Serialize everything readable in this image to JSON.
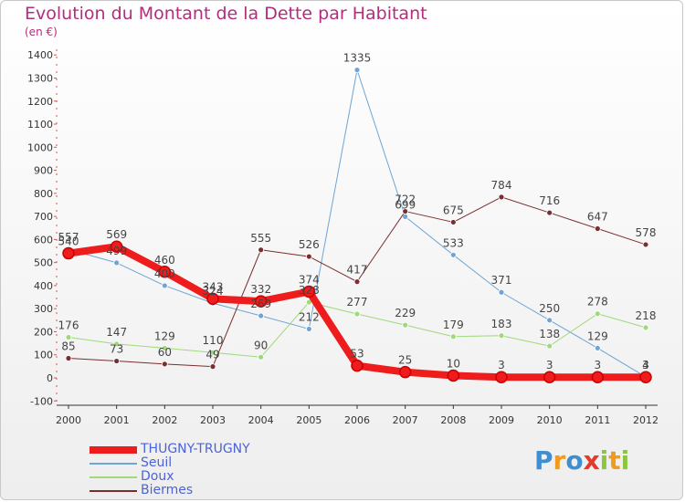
{
  "title": "Evolution du Montant de la Dette par Habitant",
  "subtitle": "(en €)",
  "logo": {
    "text": "Proxiti",
    "colors": [
      "#3e8ed0",
      "#f29a1b",
      "#3e8ed0",
      "#e23b2e",
      "#8cc63f",
      "#f29a1b",
      "#8cc63f"
    ]
  },
  "chart_data": {
    "type": "line",
    "x": [
      "2000",
      "2001",
      "2002",
      "2003",
      "2004",
      "2005",
      "2006",
      "2007",
      "2008",
      "2009",
      "2010",
      "2011",
      "2012"
    ],
    "ylim": [
      -100,
      1400
    ],
    "yticks": [
      "-100",
      "0",
      "100",
      "200",
      "300",
      "400",
      "500",
      "600",
      "700",
      "800",
      "900",
      "1000",
      "1100",
      "1200",
      "1300",
      "1400"
    ],
    "grid": false,
    "legend": "bottom-left",
    "series": [
      {
        "name": "THUGNY-TRUGNY",
        "color": "#ee1c1c",
        "width": 8,
        "marker": 6,
        "values": [
          540,
          569,
          460,
          343,
          332,
          374,
          53,
          25,
          10,
          3,
          3,
          3,
          3
        ],
        "labels": [
          "540",
          "569",
          "460",
          "343",
          "332",
          "374",
          "53",
          "25",
          "10",
          "3",
          "3",
          "3",
          "3"
        ]
      },
      {
        "name": "Seuil",
        "color": "#6fa4d4",
        "width": 1,
        "marker": 3,
        "values": [
          557,
          499,
          400,
          324,
          269,
          212,
          1335,
          699,
          533,
          371,
          250,
          129,
          4
        ],
        "labels": [
          "557",
          "499",
          "400",
          "324",
          "269",
          "212",
          "1335",
          "699",
          "533",
          "371",
          "250",
          "129",
          "4"
        ]
      },
      {
        "name": "Doux",
        "color": "#9fd97c",
        "width": 1,
        "marker": 3,
        "values": [
          176,
          147,
          129,
          110,
          90,
          328,
          277,
          229,
          179,
          183,
          138,
          278,
          218
        ],
        "labels": [
          "176",
          "147",
          "129",
          "110",
          "90",
          "328",
          "277",
          "229",
          "179",
          "183",
          "138",
          "278",
          "218"
        ]
      },
      {
        "name": "Biermes",
        "color": "#7a2e2e",
        "width": 1,
        "marker": 3,
        "values": [
          85,
          73,
          60,
          49,
          555,
          526,
          417,
          722,
          675,
          784,
          716,
          647,
          578
        ],
        "labels": [
          "85",
          "73",
          "60",
          "49",
          "555",
          "526",
          "417",
          "722",
          "675",
          "784",
          "716",
          "647",
          "578"
        ]
      }
    ]
  }
}
